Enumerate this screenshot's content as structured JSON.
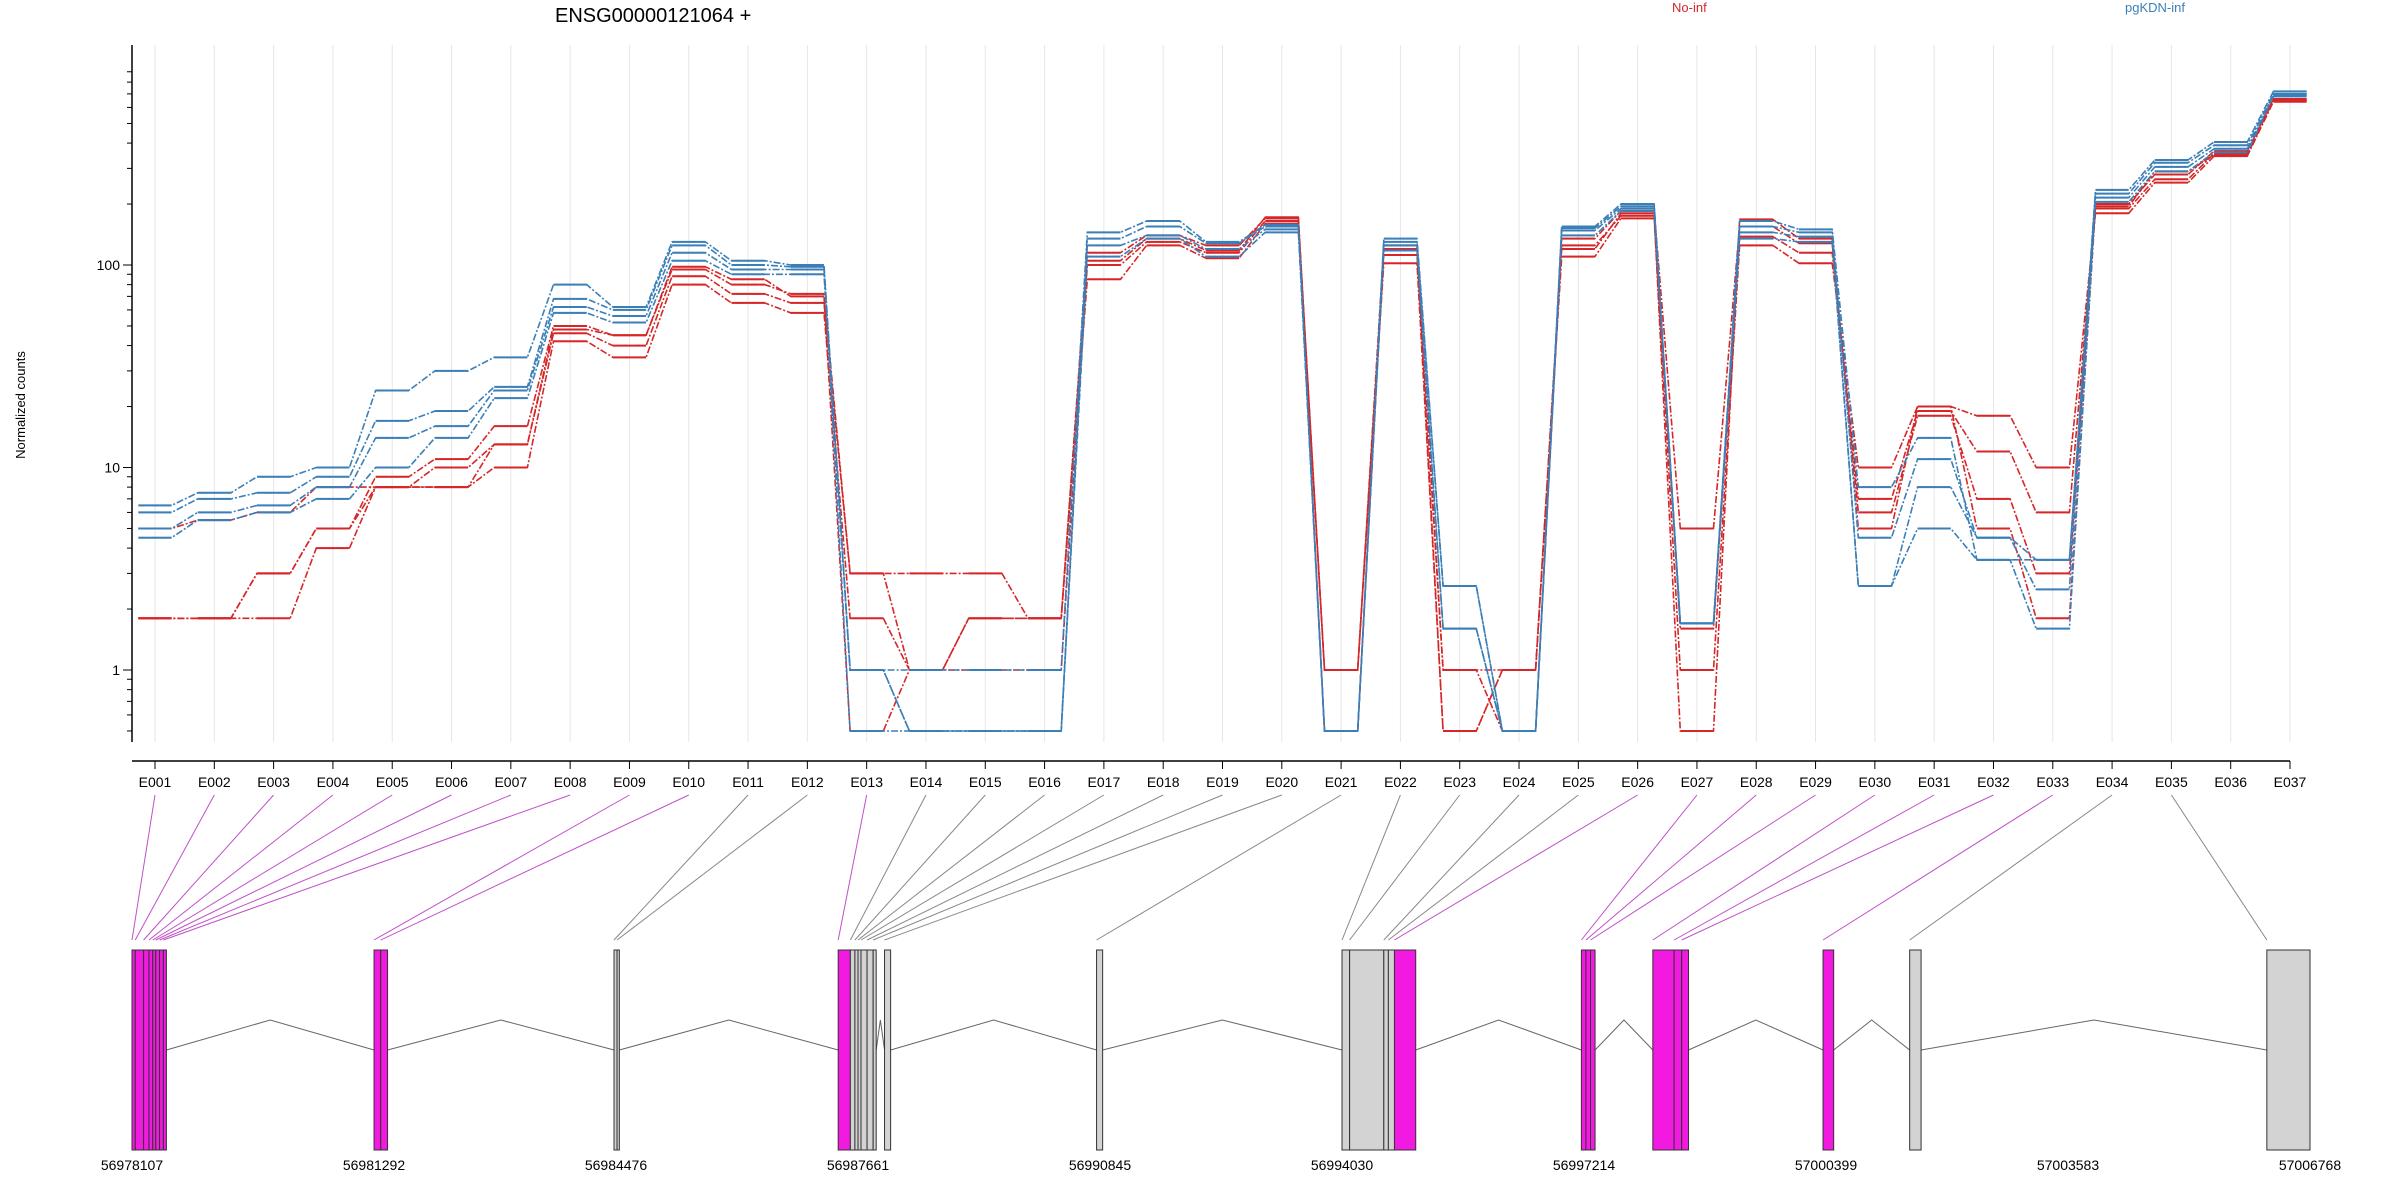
{
  "chart_data": {
    "type": "line",
    "title": "ENSG00000121064 +",
    "ylabel": "Normalized counts",
    "y_scale": "log",
    "ylim": [
      0.5,
      1000
    ],
    "y_ticks": [
      1,
      10,
      100
    ],
    "y_tick_labels": [
      "1",
      "10",
      "100"
    ],
    "vertical_gridlines": true,
    "legend": [
      {
        "label": "No-inf",
        "color": "#d62728"
      },
      {
        "label": "pgKDN-inf",
        "color": "#3b7fb8"
      }
    ],
    "categories": [
      "E001",
      "E002",
      "E003",
      "E004",
      "E005",
      "E006",
      "E007",
      "E008",
      "E009",
      "E010",
      "E011",
      "E012",
      "E013",
      "E014",
      "E015",
      "E016",
      "E017",
      "E018",
      "E019",
      "E020",
      "E021",
      "E022",
      "E023",
      "E024",
      "E025",
      "E026",
      "E027",
      "E028",
      "E029",
      "E030",
      "E031",
      "E032",
      "E033",
      "E034",
      "E035",
      "E036",
      "E037"
    ],
    "series": [
      {
        "group": "No-inf",
        "values": [
          1.8,
          1.8,
          1.8,
          4,
          8,
          8,
          10,
          42,
          35,
          80,
          65,
          58,
          1.8,
          1,
          1.8,
          1.8,
          85,
          125,
          108,
          160,
          1,
          102,
          0.45,
          1,
          110,
          170,
          1,
          125,
          102,
          10,
          20,
          18,
          10,
          180,
          255,
          345,
          640
        ]
      },
      {
        "group": "No-inf",
        "values": [
          1.8,
          1.8,
          3,
          5,
          8,
          10,
          13,
          46,
          40,
          88,
          72,
          65,
          3,
          1,
          1,
          1,
          100,
          130,
          115,
          165,
          1,
          112,
          1,
          1,
          120,
          180,
          1.6,
          138,
          115,
          7,
          19,
          12,
          6,
          190,
          265,
          355,
          650
        ]
      },
      {
        "group": "No-inf",
        "values": [
          1.8,
          1.8,
          3,
          5,
          9,
          11,
          16,
          50,
          45,
          95,
          80,
          72,
          3,
          3,
          3,
          1.8,
          115,
          140,
          125,
          170,
          1,
          125,
          1,
          0.45,
          135,
          185,
          5,
          155,
          128,
          6,
          18,
          7,
          3,
          200,
          280,
          365,
          660
        ]
      },
      {
        "group": "No-inf",
        "values": [
          5,
          5.5,
          6,
          8,
          8,
          8,
          13,
          48,
          45,
          98,
          85,
          70,
          0.45,
          1,
          1.8,
          1.8,
          105,
          135,
          118,
          172,
          0.45,
          120,
          0.45,
          1,
          125,
          175,
          0.45,
          168,
          135,
          5,
          20,
          5,
          1.8,
          195,
          290,
          350,
          655
        ]
      },
      {
        "group": "pgKDN-inf",
        "values": [
          4.5,
          5.5,
          6,
          7,
          10,
          14,
          22,
          58,
          52,
          105,
          90,
          90,
          1,
          0.45,
          0.45,
          0.45,
          110,
          135,
          110,
          145,
          0.45,
          118,
          1.6,
          0.45,
          140,
          185,
          1.7,
          135,
          130,
          2.6,
          5,
          3.5,
          1.6,
          205,
          290,
          360,
          680
        ]
      },
      {
        "group": "pgKDN-inf",
        "values": [
          5,
          6,
          6.5,
          8,
          14,
          16,
          24,
          62,
          56,
          115,
          95,
          95,
          1,
          0.45,
          0.45,
          0.45,
          125,
          140,
          120,
          150,
          0.45,
          125,
          1.6,
          0.45,
          148,
          190,
          1.7,
          145,
          138,
          2.6,
          8,
          4.5,
          2.5,
          215,
          305,
          375,
          690
        ]
      },
      {
        "group": "pgKDN-inf",
        "values": [
          6,
          7,
          7.5,
          9,
          17,
          19,
          25,
          68,
          60,
          125,
          100,
          98,
          0.45,
          0.45,
          0.45,
          0.45,
          135,
          155,
          128,
          155,
          0.45,
          130,
          2.6,
          0.45,
          152,
          195,
          1.7,
          155,
          145,
          4.5,
          11,
          4.5,
          3.5,
          225,
          320,
          390,
          700
        ]
      },
      {
        "group": "pgKDN-inf",
        "values": [
          6.5,
          7.5,
          9,
          10,
          24,
          30,
          35,
          80,
          62,
          130,
          105,
          100,
          1,
          1,
          1,
          1,
          145,
          165,
          130,
          158,
          0.45,
          135,
          2.6,
          0.45,
          155,
          200,
          1.7,
          165,
          150,
          8,
          14,
          3.5,
          3.5,
          235,
          330,
          405,
          720
        ]
      }
    ],
    "gene_model": {
      "coordinate_labels": [
        "56978107",
        "56981292",
        "56984476",
        "56987661",
        "56990845",
        "56994030",
        "56997214",
        "57000399",
        "57003583",
        "57006768"
      ],
      "coordinate_range": [
        56978107,
        57006768
      ],
      "exon_fill": "#d3d3d3",
      "highlight_fill": "#f21ae0",
      "highlighted_exons": [
        "E001",
        "E002",
        "E003",
        "E004",
        "E005",
        "E006",
        "E007",
        "E008",
        "E009",
        "E010",
        "E013",
        "E026",
        "E027",
        "E028",
        "E029",
        "E030",
        "E031",
        "E032",
        "E033"
      ]
    }
  }
}
